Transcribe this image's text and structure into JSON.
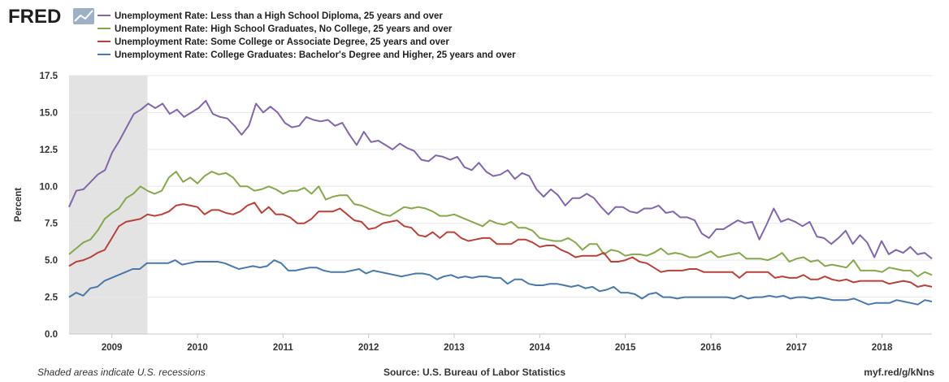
{
  "chart_data": {
    "type": "line",
    "logo": "FRED",
    "ylabel": "Percent",
    "ylim": [
      0,
      17.5
    ],
    "yticks": [
      "0.0",
      "2.5",
      "5.0",
      "7.5",
      "10.0",
      "12.5",
      "15.0",
      "17.5"
    ],
    "xlim": [
      2008.5,
      2018.583
    ],
    "xticks": [
      "2009",
      "2010",
      "2011",
      "2012",
      "2013",
      "2014",
      "2015",
      "2016",
      "2017",
      "2018"
    ],
    "recession": {
      "start": 2008.5,
      "end": 2009.417
    },
    "footer": {
      "note": "Shaded areas indicate U.S. recessions",
      "source": "Source: U.S. Bureau of Labor Statistics",
      "url": "myf.red/g/kNns"
    },
    "series": [
      {
        "name": "Unemployment Rate: Less than a High School Diploma, 25 years and over",
        "color": "#8068a8",
        "values": [
          8.6,
          9.7,
          9.8,
          10.3,
          10.8,
          11.1,
          12.3,
          13.1,
          14.0,
          14.9,
          15.2,
          15.6,
          15.3,
          15.6,
          14.9,
          15.2,
          14.7,
          15.0,
          15.3,
          15.8,
          14.9,
          14.7,
          14.6,
          14.1,
          13.5,
          14.1,
          15.6,
          15.0,
          15.4,
          15.0,
          14.3,
          14.0,
          14.1,
          14.7,
          14.5,
          14.4,
          14.5,
          14.1,
          14.3,
          13.5,
          12.8,
          13.7,
          13.0,
          13.1,
          12.8,
          12.5,
          12.9,
          12.6,
          12.4,
          11.8,
          11.7,
          12.1,
          12.0,
          11.8,
          12.0,
          11.3,
          11.1,
          11.6,
          11.0,
          10.7,
          10.8,
          11.1,
          10.5,
          10.9,
          10.7,
          9.8,
          9.3,
          9.8,
          9.4,
          8.7,
          9.2,
          9.2,
          9.5,
          9.2,
          8.6,
          8.1,
          8.6,
          8.6,
          8.3,
          8.2,
          8.5,
          8.5,
          8.7,
          8.2,
          8.3,
          7.9,
          7.9,
          7.7,
          6.8,
          6.5,
          7.1,
          7.1,
          7.4,
          7.7,
          7.5,
          7.6,
          6.4,
          7.4,
          8.5,
          7.6,
          7.8,
          7.6,
          7.3,
          7.6,
          6.6,
          6.5,
          6.1,
          6.5,
          7.0,
          6.1,
          6.7,
          6.2,
          5.2,
          6.3,
          5.4,
          5.7,
          5.5,
          5.9,
          5.4,
          5.5,
          5.1
        ]
      },
      {
        "name": "Unemployment Rate: High School Graduates, No College, 25 years and over",
        "color": "#86a74e",
        "values": [
          5.4,
          5.8,
          6.2,
          6.4,
          7.0,
          7.8,
          8.2,
          8.5,
          9.2,
          9.5,
          10.0,
          9.7,
          9.5,
          9.7,
          10.6,
          11.0,
          10.3,
          10.6,
          10.2,
          10.7,
          11.0,
          10.8,
          10.9,
          10.6,
          10.0,
          10.0,
          9.7,
          9.8,
          10.0,
          9.8,
          9.5,
          9.7,
          9.7,
          9.9,
          9.5,
          10.0,
          9.1,
          9.3,
          9.4,
          9.4,
          8.8,
          8.7,
          8.5,
          8.3,
          8.1,
          8.0,
          8.3,
          8.6,
          8.5,
          8.6,
          8.5,
          8.3,
          8.0,
          8.0,
          8.1,
          7.9,
          7.7,
          7.5,
          7.3,
          7.7,
          7.5,
          7.4,
          7.6,
          7.2,
          7.2,
          7.0,
          6.5,
          6.4,
          6.3,
          6.3,
          6.5,
          6.2,
          5.7,
          6.1,
          6.1,
          5.4,
          5.7,
          5.6,
          5.3,
          5.4,
          5.4,
          5.3,
          5.5,
          5.8,
          5.4,
          5.5,
          5.4,
          5.2,
          5.2,
          5.4,
          5.6,
          5.2,
          5.3,
          5.4,
          5.5,
          5.1,
          5.1,
          5.1,
          5.0,
          5.2,
          5.5,
          4.9,
          5.1,
          5.2,
          4.9,
          5.0,
          4.6,
          4.7,
          4.6,
          4.5,
          5.0,
          4.3,
          4.3,
          4.3,
          4.2,
          4.5,
          4.4,
          4.3,
          4.3,
          3.9,
          4.2,
          4.0
        ]
      },
      {
        "name": "Unemployment Rate: Some College or Associate Degree, 25 years and over",
        "color": "#b5433c",
        "values": [
          4.6,
          4.9,
          5.0,
          5.2,
          5.5,
          5.7,
          6.5,
          7.3,
          7.6,
          7.7,
          7.8,
          8.1,
          8.0,
          8.1,
          8.3,
          8.7,
          8.8,
          8.7,
          8.6,
          8.1,
          8.4,
          8.4,
          8.2,
          8.1,
          8.3,
          8.7,
          8.9,
          8.2,
          8.6,
          8.1,
          8.1,
          7.9,
          7.5,
          7.5,
          7.8,
          8.3,
          8.3,
          8.3,
          8.5,
          8.1,
          7.7,
          7.6,
          7.1,
          7.2,
          7.5,
          7.6,
          7.7,
          7.3,
          7.2,
          6.7,
          6.6,
          6.9,
          6.5,
          6.9,
          6.9,
          6.5,
          6.3,
          6.4,
          6.5,
          6.5,
          6.1,
          6.1,
          6.1,
          6.4,
          6.4,
          6.2,
          5.9,
          6.0,
          6.0,
          5.7,
          5.5,
          5.2,
          5.3,
          5.3,
          5.3,
          5.5,
          4.9,
          4.9,
          5.0,
          5.2,
          4.9,
          4.8,
          4.5,
          4.2,
          4.3,
          4.3,
          4.3,
          4.4,
          4.4,
          4.2,
          4.2,
          4.2,
          4.2,
          4.2,
          3.8,
          4.2,
          4.2,
          4.2,
          4.2,
          3.8,
          3.9,
          3.8,
          3.8,
          4.0,
          3.7,
          3.7,
          3.9,
          3.7,
          3.6,
          3.7,
          3.5,
          3.6,
          3.6,
          3.6,
          3.6,
          3.4,
          3.5,
          3.6,
          3.5,
          3.2,
          3.3,
          3.2
        ]
      },
      {
        "name": "Unemployment Rate: College Graduates: Bachelor's Degree and Higher, 25 years and over",
        "color": "#4a78a8",
        "values": [
          2.5,
          2.8,
          2.6,
          3.1,
          3.2,
          3.6,
          3.8,
          4.0,
          4.2,
          4.4,
          4.4,
          4.8,
          4.8,
          4.8,
          4.8,
          5.0,
          4.7,
          4.8,
          4.9,
          4.9,
          4.9,
          4.9,
          4.8,
          4.6,
          4.4,
          4.5,
          4.6,
          4.5,
          4.6,
          5.0,
          4.8,
          4.3,
          4.3,
          4.4,
          4.5,
          4.5,
          4.3,
          4.2,
          4.2,
          4.2,
          4.3,
          4.4,
          4.1,
          4.3,
          4.2,
          4.1,
          4.0,
          3.9,
          4.0,
          4.1,
          4.1,
          4.0,
          3.7,
          3.9,
          4.0,
          3.8,
          3.9,
          3.8,
          3.9,
          3.9,
          3.8,
          3.8,
          3.4,
          3.7,
          3.7,
          3.4,
          3.3,
          3.3,
          3.4,
          3.4,
          3.3,
          3.2,
          3.3,
          3.1,
          3.2,
          2.9,
          3.0,
          3.2,
          2.8,
          2.8,
          2.7,
          2.4,
          2.7,
          2.8,
          2.5,
          2.5,
          2.4,
          2.5,
          2.5,
          2.5,
          2.5,
          2.5,
          2.5,
          2.5,
          2.4,
          2.6,
          2.4,
          2.5,
          2.5,
          2.6,
          2.5,
          2.6,
          2.4,
          2.5,
          2.5,
          2.4,
          2.5,
          2.4,
          2.3,
          2.3,
          2.3,
          2.4,
          2.2,
          2.0,
          2.1,
          2.1,
          2.1,
          2.3,
          2.2,
          2.1,
          2.0,
          2.3,
          2.2
        ]
      }
    ]
  }
}
